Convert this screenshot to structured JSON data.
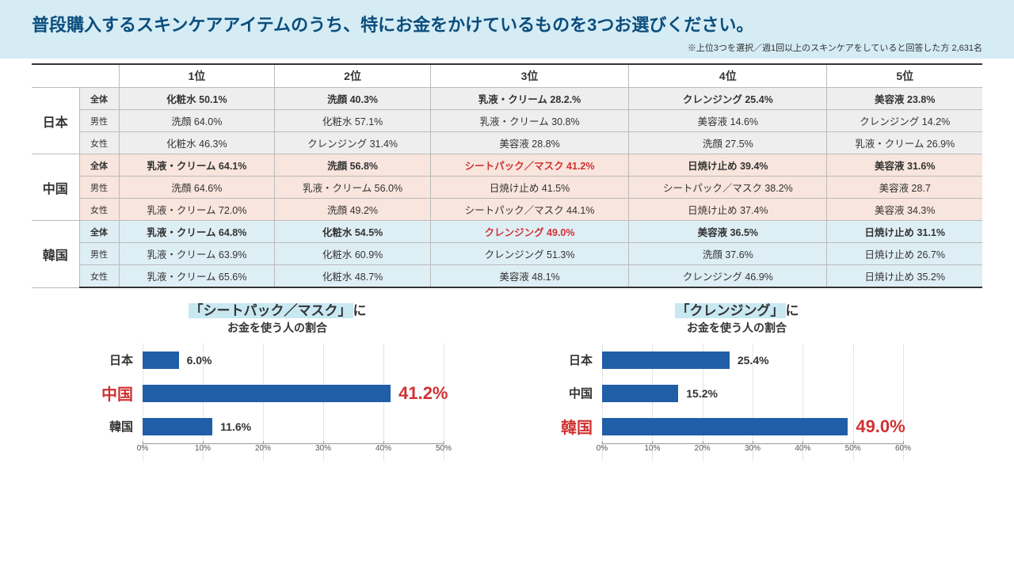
{
  "header": {
    "title": "普段購入するスキンケアアイテムのうち、特にお金をかけているものを3つお選びください。",
    "note": "※上位3つを選択／週1回以上のスキンケアをしていると回答した方 2,631名"
  },
  "table": {
    "rank_headers": [
      "1位",
      "2位",
      "3位",
      "4位",
      "5位"
    ],
    "groups": [
      {
        "country": "日本",
        "bg": "bg-grey",
        "rows": [
          {
            "seg": "全体",
            "bold": true,
            "cells": [
              "化粧水 50.1%",
              "洗顔 40.3%",
              "乳液・クリーム 28.2.%",
              "クレンジング 25.4%",
              "美容液 23.8%"
            ]
          },
          {
            "seg": "男性",
            "cells": [
              "洗顔 64.0%",
              "化粧水 57.1%",
              "乳液・クリーム 30.8%",
              "美容液 14.6%",
              "クレンジング 14.2%"
            ]
          },
          {
            "seg": "女性",
            "cells": [
              "化粧水 46.3%",
              "クレンジング 31.4%",
              "美容液 28.8%",
              "洗顔 27.5%",
              "乳液・クリーム 26.9%"
            ]
          }
        ]
      },
      {
        "country": "中国",
        "bg": "bg-peach",
        "rows": [
          {
            "seg": "全体",
            "bold": true,
            "cells": [
              "乳液・クリーム 64.1%",
              "洗顔 56.8%",
              {
                "t": "シートパック／マスク 41.2%",
                "red": true
              },
              "日焼け止め 39.4%",
              "美容液 31.6%"
            ]
          },
          {
            "seg": "男性",
            "cells": [
              "洗顔 64.6%",
              "乳液・クリーム 56.0%",
              "日焼け止め 41.5%",
              "シートパック／マスク 38.2%",
              "美容液 28.7"
            ]
          },
          {
            "seg": "女性",
            "cells": [
              "乳液・クリーム 72.0%",
              "洗顔 49.2%",
              "シートパック／マスク 44.1%",
              "日焼け止め 37.4%",
              "美容液 34.3%"
            ]
          }
        ]
      },
      {
        "country": "韓国",
        "bg": "bg-blue",
        "rows": [
          {
            "seg": "全体",
            "bold": true,
            "cells": [
              "乳液・クリーム 64.8%",
              "化粧水 54.5%",
              {
                "t": "クレンジング 49.0%",
                "red": true
              },
              "美容液 36.5%",
              "日焼け止め 31.1%"
            ]
          },
          {
            "seg": "男性",
            "cells": [
              "乳液・クリーム 63.9%",
              "化粧水 60.9%",
              "クレンジング 51.3%",
              "洗顔 37.6%",
              "日焼け止め 26.7%"
            ]
          },
          {
            "seg": "女性",
            "cells": [
              "乳液・クリーム 65.6%",
              "化粧水 48.7%",
              "美容液 48.1%",
              "クレンジング 46.9%",
              "日焼け止め 35.2%"
            ]
          }
        ]
      }
    ]
  },
  "charts": [
    {
      "title_hl": "「シートパック／マスク」",
      "title_tail": "に",
      "title_sub": "お金を使う人の割合",
      "xmax": 50,
      "xtick": 10,
      "bars": [
        {
          "label": "日本",
          "value": 6.0,
          "vlabel": "6.0%"
        },
        {
          "label": "中国",
          "value": 41.2,
          "vlabel": "41.2%",
          "hot": true
        },
        {
          "label": "韓国",
          "value": 11.6,
          "vlabel": "11.6%"
        }
      ]
    },
    {
      "title_hl": "「クレンジング」",
      "title_tail": "に",
      "title_sub": "お金を使う人の割合",
      "xmax": 60,
      "xtick": 10,
      "bars": [
        {
          "label": "日本",
          "value": 25.4,
          "vlabel": "25.4%"
        },
        {
          "label": "中国",
          "value": 15.2,
          "vlabel": "15.2%"
        },
        {
          "label": "韓国",
          "value": 49.0,
          "vlabel": "49.0%",
          "hot": true
        }
      ]
    }
  ],
  "colors": {
    "bar": "#205ea8",
    "red": "#d13232"
  }
}
